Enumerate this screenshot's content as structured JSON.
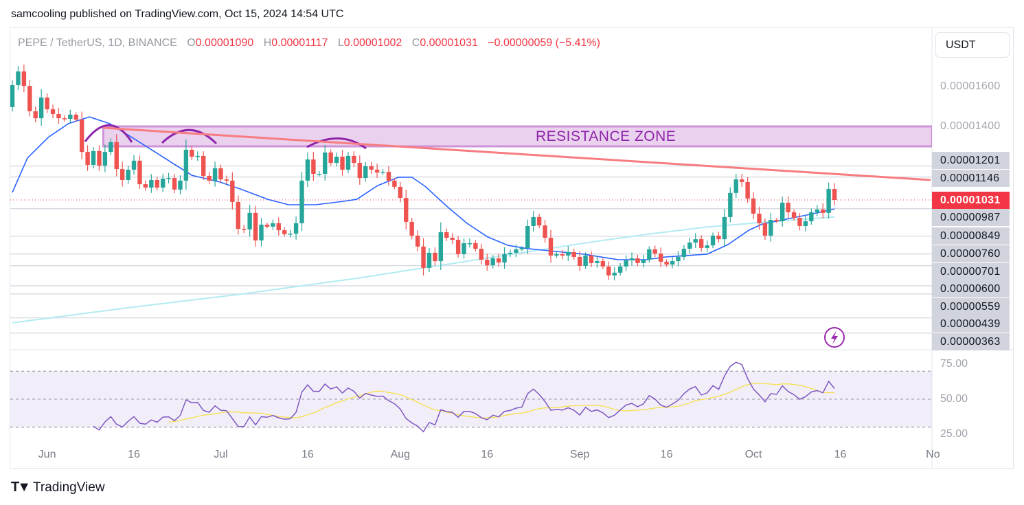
{
  "publisher": "samcooling published on TradingView.com, Oct 15, 2024 14:54 UTC",
  "legend": {
    "symbol": "PEPE / TetherUS, 1D, BINANCE",
    "o_label": "O",
    "o_value": "0.00001090",
    "h_label": "H",
    "h_value": "0.00001117",
    "l_label": "L",
    "l_value": "0.00001002",
    "c_label": "C",
    "c_value": "0.00001031",
    "change": "−0.00000059 (−5.41%)"
  },
  "currency_button": "USDT",
  "colors": {
    "up": "#26a69a",
    "down": "#ef5350",
    "ma_fast": "#2962ff",
    "ma_slow": "#b2ebf2",
    "trendline": "#f77c80",
    "zone": "#e1bee7",
    "rsi": "#7e57c2",
    "rsi_ma": "#f5e04a",
    "current": "#f23645"
  },
  "price_axis": {
    "plain_labels": [
      {
        "text": "0.00001600",
        "price": 1600
      },
      {
        "text": "0.00001400",
        "price": 1400
      }
    ],
    "level_labels": [
      {
        "text": "0.00001201",
        "price": 1201
      },
      {
        "text": "0.00001146",
        "price": 1146
      },
      {
        "text": "0.00001031",
        "price": 1031,
        "current": true
      },
      {
        "text": "0.00000987",
        "price": 987
      },
      {
        "text": "0.00000849",
        "price": 849
      },
      {
        "text": "0.00000760",
        "price": 760
      },
      {
        "text": "0.00000701",
        "price": 701
      },
      {
        "text": "0.00000600",
        "price": 600
      },
      {
        "text": "0.00000559",
        "price": 559
      },
      {
        "text": "0.00000439",
        "price": 439
      },
      {
        "text": "0.00000363",
        "price": 363
      }
    ]
  },
  "rsi_axis": [
    {
      "text": "75.00",
      "value": 75
    },
    {
      "text": "50.00",
      "value": 50
    },
    {
      "text": "25.00",
      "value": 25
    }
  ],
  "x_axis": [
    {
      "text": "Jun",
      "index": 6
    },
    {
      "text": "16",
      "index": 21
    },
    {
      "text": "Jul",
      "index": 36
    },
    {
      "text": "16",
      "index": 51
    },
    {
      "text": "Aug",
      "index": 67
    },
    {
      "text": "16",
      "index": 82
    },
    {
      "text": "Sep",
      "index": 98
    },
    {
      "text": "16",
      "index": 113
    },
    {
      "text": "Oct",
      "index": 128
    },
    {
      "text": "16",
      "index": 143
    },
    {
      "text": "No",
      "index": 159
    }
  ],
  "annotation": {
    "zone_label": "RESISTANCE ZONE"
  },
  "brand": "TradingView",
  "chart_data": {
    "type": "candlestick",
    "title": "PEPE / TetherUS, 1D, BINANCE",
    "price_unit": "1e-8 USDT",
    "first_date": "2024-05-26",
    "last_date": "2024-10-15",
    "first_open": 1497,
    "closes": [
      1607,
      1676,
      1603,
      1476,
      1441,
      1545,
      1486,
      1462,
      1441,
      1438,
      1459,
      1434,
      1272,
      1207,
      1276,
      1203,
      1272,
      1321,
      1186,
      1131,
      1183,
      1228,
      1110,
      1093,
      1131,
      1093,
      1138,
      1141,
      1083,
      1128,
      1283,
      1248,
      1252,
      1152,
      1128,
      1190,
      1134,
      1128,
      1021,
      886,
      883,
      966,
      828,
      907,
      897,
      914,
      879,
      859,
      862,
      914,
      1128,
      1234,
      1162,
      1162,
      1269,
      1217,
      1248,
      1183,
      1252,
      1217,
      1141,
      1200,
      1183,
      1169,
      1172,
      1128,
      1097,
      1041,
      921,
      852,
      797,
      690,
      766,
      724,
      869,
      841,
      831,
      759,
      814,
      814,
      786,
      731,
      703,
      738,
      717,
      759,
      766,
      783,
      790,
      900,
      945,
      903,
      841,
      752,
      759,
      752,
      769,
      745,
      700,
      752,
      714,
      724,
      697,
      652,
      666,
      697,
      728,
      738,
      714,
      731,
      783,
      762,
      721,
      707,
      724,
      745,
      786,
      817,
      834,
      790,
      803,
      852,
      834,
      945,
      1066,
      1134,
      1121,
      1038,
      962,
      914,
      852,
      931,
      924,
      1017,
      969,
      941,
      900,
      924,
      969,
      983,
      966,
      1086,
      1031
    ],
    "ma_fast": [
      [
        0,
        1069
      ],
      [
        2.6,
        1241
      ],
      [
        6.2,
        1345
      ],
      [
        9.7,
        1414
      ],
      [
        13.3,
        1448
      ],
      [
        16.8,
        1414
      ],
      [
        21.6,
        1328
      ],
      [
        26.3,
        1241
      ],
      [
        31,
        1155
      ],
      [
        35.8,
        1121
      ],
      [
        39.4,
        1086
      ],
      [
        44.1,
        1034
      ],
      [
        47.7,
        1007
      ],
      [
        52.4,
        1007
      ],
      [
        57.2,
        1024
      ],
      [
        59.5,
        1034
      ],
      [
        63.1,
        1103
      ],
      [
        66.7,
        1145
      ],
      [
        69,
        1145
      ],
      [
        71.4,
        1097
      ],
      [
        75,
        1000
      ],
      [
        78.5,
        914
      ],
      [
        82.1,
        845
      ],
      [
        85.6,
        803
      ],
      [
        89.2,
        786
      ],
      [
        92.8,
        776
      ],
      [
        98.7,
        759
      ],
      [
        104.6,
        731
      ],
      [
        109.4,
        731
      ],
      [
        112.9,
        745
      ],
      [
        116.5,
        752
      ],
      [
        120,
        759
      ],
      [
        123.6,
        807
      ],
      [
        127.2,
        879
      ],
      [
        129.5,
        910
      ],
      [
        131.9,
        924
      ],
      [
        135.5,
        945
      ],
      [
        139,
        966
      ],
      [
        142,
        986
      ]
    ],
    "ma_slow": [
      [
        0,
        414
      ],
      [
        20,
        490
      ],
      [
        40,
        560
      ],
      [
        60,
        640
      ],
      [
        80,
        730
      ],
      [
        100,
        820
      ],
      [
        110,
        860
      ],
      [
        120,
        895
      ],
      [
        130,
        920
      ],
      [
        142,
        945
      ]
    ],
    "resistance_zone": [
      1300,
      1400
    ],
    "trendline": [
      [
        15.7,
        1393
      ],
      [
        158.6,
        1131
      ]
    ],
    "current_price": 1031,
    "rsi_period": 14,
    "rsi_ylim": [
      25,
      75
    ],
    "rsi_band": [
      30,
      70
    ]
  }
}
